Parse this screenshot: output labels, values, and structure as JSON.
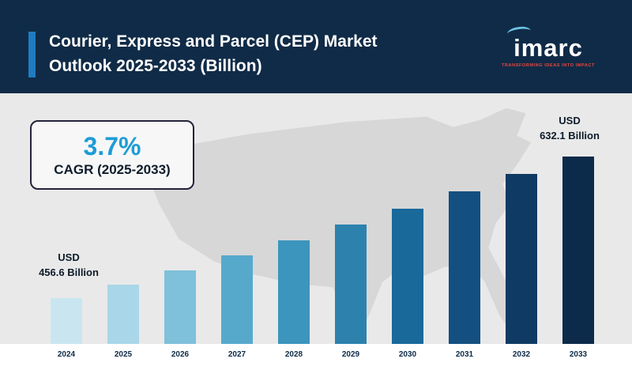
{
  "header": {
    "title_line1": "Courier, Express and Parcel (CEP) Market",
    "title_line2": "Outlook 2025-2033 (Billion)",
    "logo": {
      "text": "imarc",
      "tagline": "TRANSFORMING IDEAS INTO IMPACT"
    }
  },
  "cagr_box": {
    "value": "3.7%",
    "label": "CAGR (2025-2033)"
  },
  "callouts": {
    "first_bar": {
      "line1": "USD",
      "line2": "456.6 Billion"
    },
    "last_bar": {
      "line1": "USD",
      "line2": "632.1 Billion"
    }
  },
  "chart_data": {
    "type": "bar",
    "title": "Courier, Express and Parcel (CEP) Market Outlook 2025-2033 (Billion)",
    "unit": "USD Billion",
    "categories": [
      "2024",
      "2025",
      "2026",
      "2027",
      "2028",
      "2029",
      "2030",
      "2031",
      "2032",
      "2033"
    ],
    "values": [
      456.6,
      473.5,
      491.0,
      509.2,
      528.0,
      547.6,
      567.8,
      588.9,
      610.6,
      632.1
    ],
    "labeled_points": {
      "2024": "USD 456.6 Billion",
      "2033": "USD 632.1 Billion"
    },
    "cagr_2025_2033": "3.7%",
    "ylim": [
      400,
      635
    ],
    "grid": false,
    "legend": false,
    "bar_colors": [
      "#c9e6f0",
      "#a9d6e8",
      "#7fc0da",
      "#57a9cc",
      "#3b95bd",
      "#2c82ad",
      "#19699b",
      "#134f80",
      "#0f3a63",
      "#0c2a4a"
    ]
  },
  "colors": {
    "header_bg": "#102b47",
    "accent_bar": "#1f7cc0",
    "body_bg": "#e9e9e9",
    "map_fill": "#d7d7d7",
    "cagr_value": "#1e9cd7",
    "text_dark": "#0d1b2a",
    "footer_bg": "#ffffff"
  }
}
